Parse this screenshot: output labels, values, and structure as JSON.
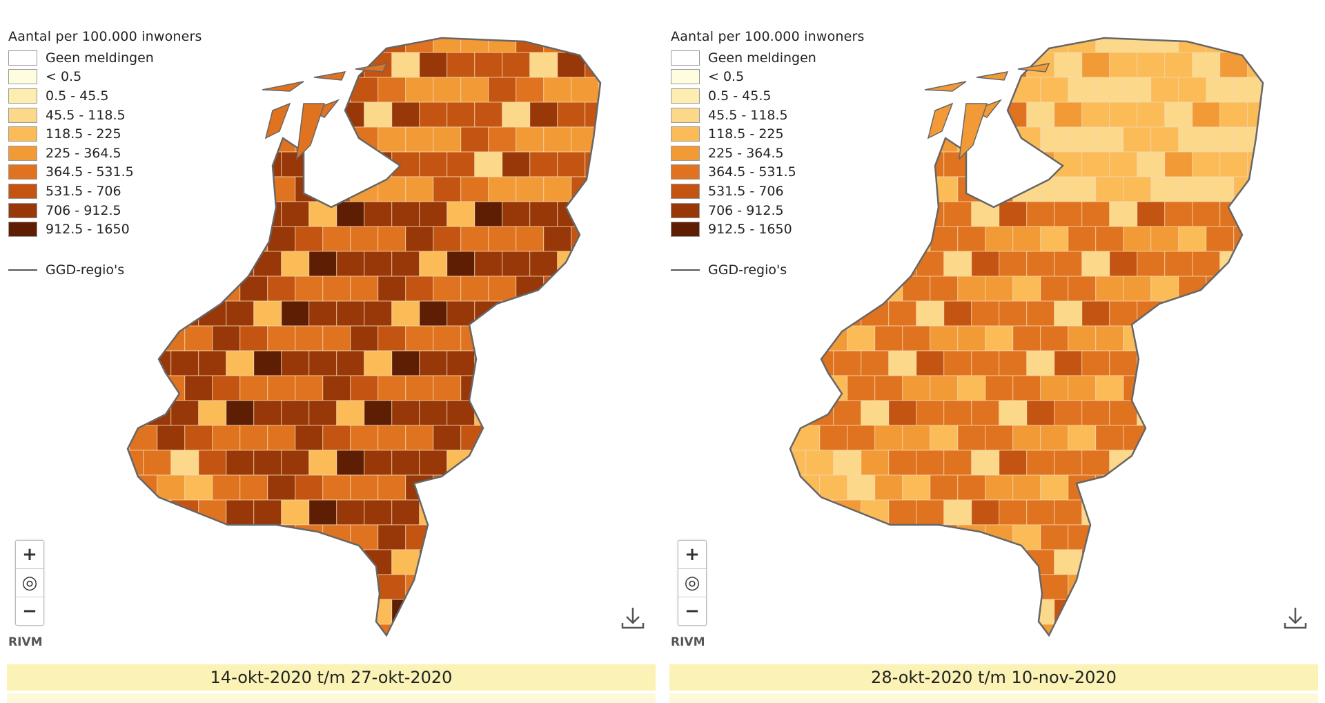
{
  "legend": {
    "title": "Aantal per 100.000 inwoners",
    "classes": [
      {
        "label": "Geen meldingen",
        "color": "#ffffff"
      },
      {
        "label": "< 0.5",
        "color": "#fffde0"
      },
      {
        "label": "0.5 - 45.5",
        "color": "#fdeeb0"
      },
      {
        "label": "45.5 - 118.5",
        "color": "#fcd98a"
      },
      {
        "label": "118.5 - 225",
        "color": "#fbbb57"
      },
      {
        "label": "225 - 364.5",
        "color": "#f29a36"
      },
      {
        "label": "364.5 - 531.5",
        "color": "#e0731f"
      },
      {
        "label": "531.5 - 706",
        "color": "#c45411"
      },
      {
        "label": "706 - 912.5",
        "color": "#983708"
      },
      {
        "label": "912.5 - 1650",
        "color": "#5e1e04"
      }
    ],
    "region_label": "GGD-regio's"
  },
  "controls": {
    "zoom_in": "+",
    "locate": "◎",
    "zoom_out": "−"
  },
  "attribution": "RIVM",
  "maps": [
    {
      "period": "14-okt-2020 t/m 27-okt-2020"
    },
    {
      "period": "28-okt-2020 t/m 10-nov-2020"
    }
  ]
}
